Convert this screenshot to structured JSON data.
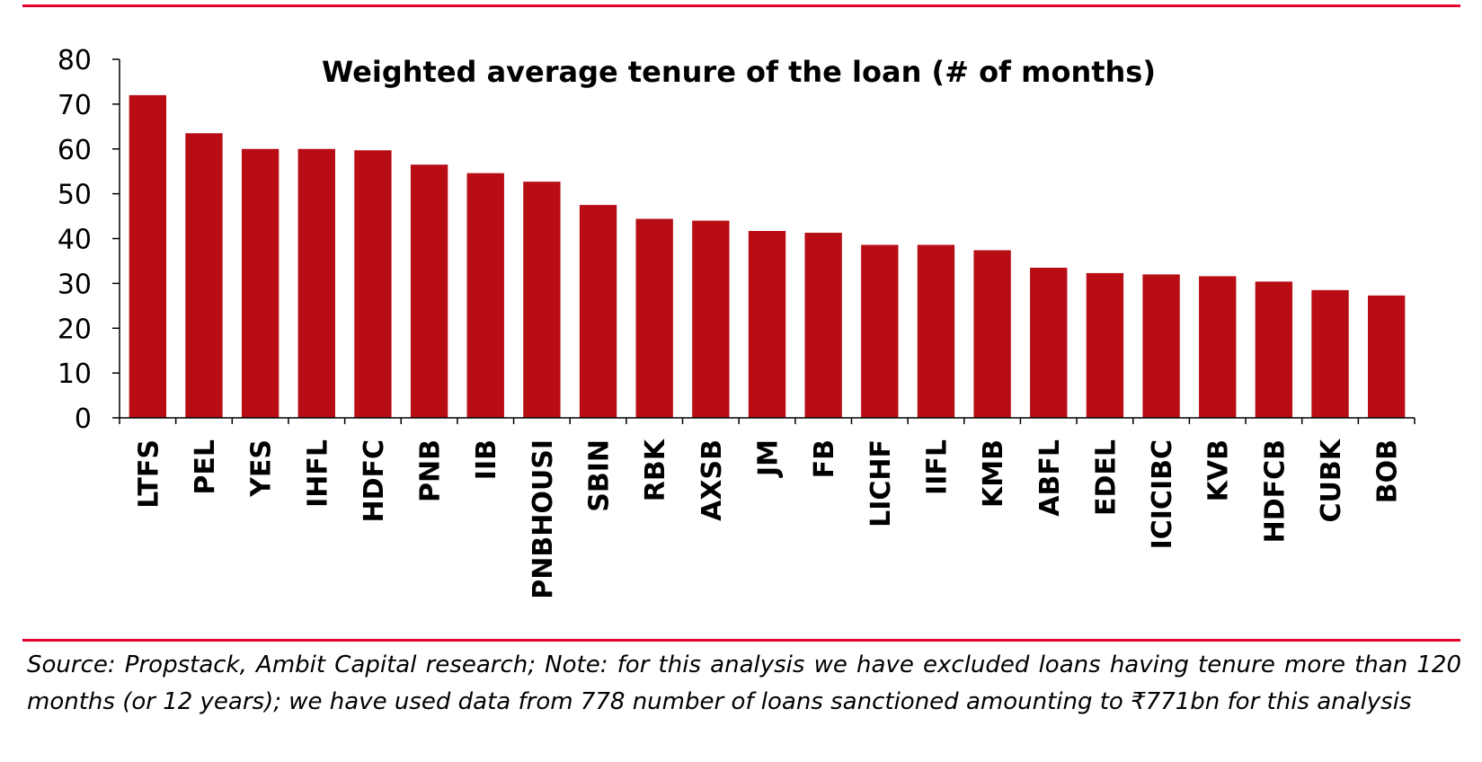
{
  "chart_data": {
    "type": "bar",
    "title": "Weighted average tenure of the loan (# of months)",
    "xlabel": "",
    "ylabel": "",
    "ylim": [
      0,
      80
    ],
    "yticks": [
      0,
      10,
      20,
      30,
      40,
      50,
      60,
      70,
      80
    ],
    "grid": false,
    "legend": "none",
    "bar_color": "#b80d15",
    "categories": [
      "LTFS",
      "PEL",
      "YES",
      "IHFL",
      "HDFC",
      "PNB",
      "IIB",
      "PNBHOUSI",
      "SBIN",
      "RBK",
      "AXSB",
      "JM",
      "FB",
      "LICHF",
      "IIFL",
      "KMB",
      "ABFL",
      "EDEL",
      "ICICIBC",
      "KVB",
      "HDFCB",
      "CUBK",
      "BOB"
    ],
    "values": [
      72,
      63.5,
      60,
      60,
      59.7,
      56.5,
      54.6,
      52.7,
      47.5,
      44.4,
      44,
      41.7,
      41.3,
      38.6,
      38.6,
      37.4,
      33.5,
      32.3,
      32,
      31.6,
      30.4,
      28.5,
      27.3
    ]
  },
  "accent_color": "#e4002b",
  "footnote": "Source: Propstack, Ambit Capital research; Note: for this analysis we have excluded loans having tenure more than 120 months (or 12 years); we have used data from 778 number of loans sanctioned amounting to ₹771bn for this analysis"
}
